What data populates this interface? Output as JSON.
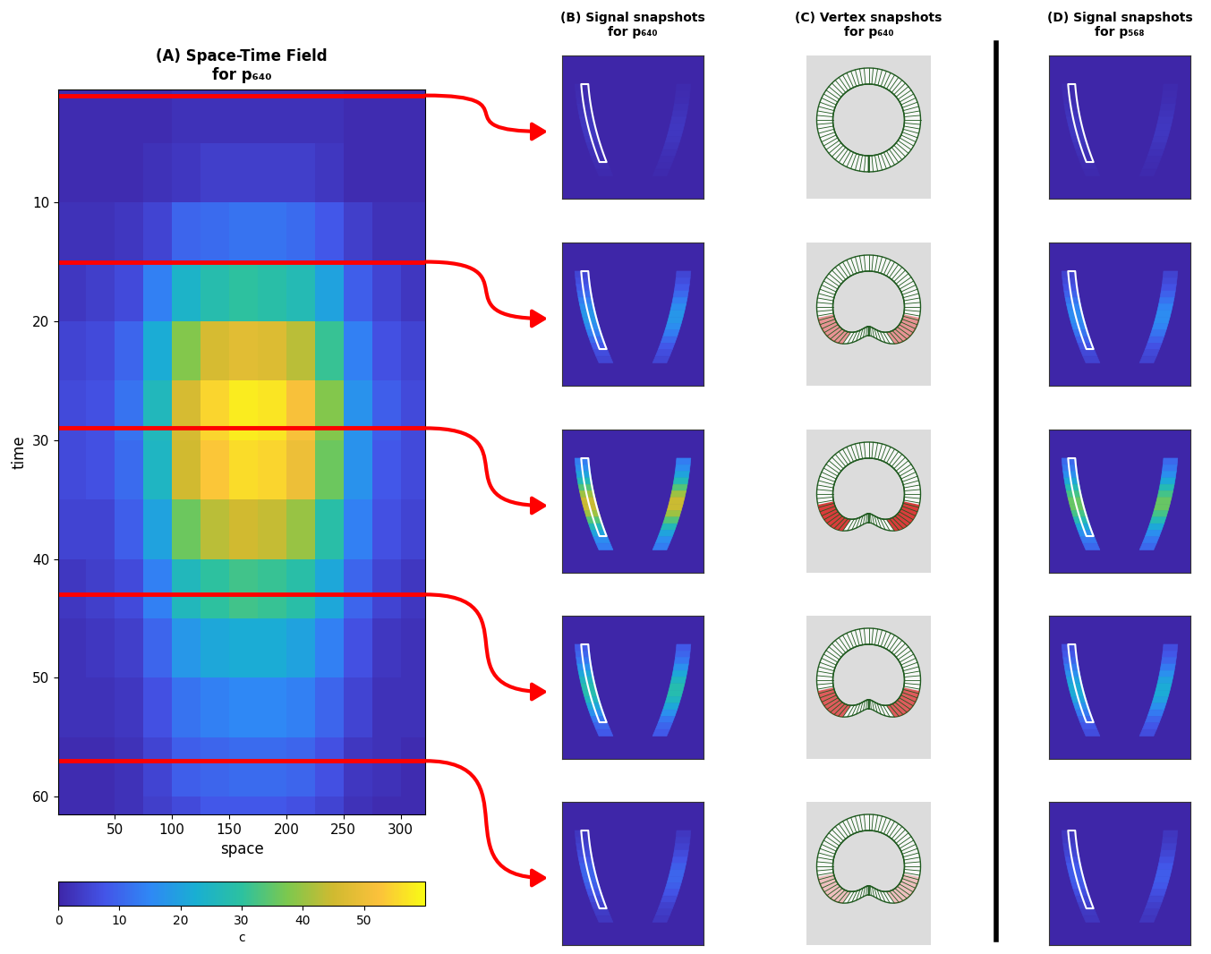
{
  "chart_data": {
    "type": "heatmap",
    "title": "(A) Space-Time Field\nfor p₆₄₀",
    "x_label": "space",
    "y_label": "time",
    "xlim": [
      0.5,
      321.5
    ],
    "ylim": [
      61.5,
      0.5
    ],
    "xticks": [
      50,
      100,
      150,
      200,
      250,
      300
    ],
    "yticks": [
      10,
      20,
      30,
      40,
      50,
      60
    ],
    "x_edges": [
      0,
      25,
      50,
      75,
      100,
      125,
      150,
      175,
      200,
      225,
      250,
      275,
      300,
      325
    ],
    "y_edges": [
      0,
      5,
      10,
      15,
      20,
      25,
      30,
      35,
      40,
      45,
      50,
      55,
      60,
      65
    ],
    "cells": [
      [
        1,
        1,
        1,
        1,
        2,
        2,
        2,
        2,
        2,
        2,
        1,
        1,
        1
      ],
      [
        1,
        1,
        1,
        2,
        3,
        4,
        4,
        4,
        4,
        3,
        1,
        1,
        1
      ],
      [
        2,
        2,
        3,
        5,
        10,
        11,
        12,
        12,
        11,
        8,
        4,
        2,
        2
      ],
      [
        3,
        4,
        6,
        14,
        24,
        28,
        30,
        29,
        27,
        20,
        9,
        5,
        3
      ],
      [
        5,
        6,
        10,
        22,
        38,
        46,
        48,
        47,
        43,
        31,
        14,
        7,
        5
      ],
      [
        6,
        7,
        12,
        26,
        46,
        55,
        58,
        57,
        52,
        38,
        17,
        9,
        6
      ],
      [
        6,
        7,
        11,
        25,
        45,
        53,
        56,
        55,
        50,
        36,
        17,
        8,
        6
      ],
      [
        5,
        5,
        9,
        20,
        36,
        43,
        45,
        44,
        40,
        29,
        14,
        7,
        5
      ],
      [
        3,
        4,
        6,
        14,
        26,
        30,
        32,
        31,
        29,
        21,
        10,
        5,
        3
      ],
      [
        2,
        3,
        4,
        10,
        18,
        21,
        22,
        22,
        20,
        14,
        7,
        3,
        2
      ],
      [
        2,
        2,
        3,
        7,
        12,
        14,
        15,
        15,
        14,
        10,
        5,
        2,
        2
      ],
      [
        1,
        1,
        2,
        5,
        9,
        10,
        11,
        11,
        10,
        7,
        3,
        2,
        1
      ],
      [
        1,
        1,
        2,
        4,
        6,
        8,
        8,
        8,
        7,
        5,
        2,
        1,
        1
      ]
    ],
    "colorbar": {
      "label": "c",
      "range": [
        0,
        60
      ],
      "ticks": [
        0,
        10,
        20,
        30,
        40,
        50
      ]
    },
    "snapshot_times": [
      1,
      15,
      29,
      43,
      57
    ]
  },
  "panels": [
    {
      "type": "signal",
      "title": "(B) Signal snapshots\nfor p₆₄₀",
      "values": [
        3,
        18,
        45,
        28,
        10
      ]
    },
    {
      "type": "vertex",
      "title": "(C) Vertex snapshots\nfor p₆₄₀"
    },
    {
      "type": "signal",
      "title": "(D) Signal snapshots\nfor p₅₆₈",
      "values": [
        3,
        16,
        36,
        22,
        9
      ]
    }
  ]
}
